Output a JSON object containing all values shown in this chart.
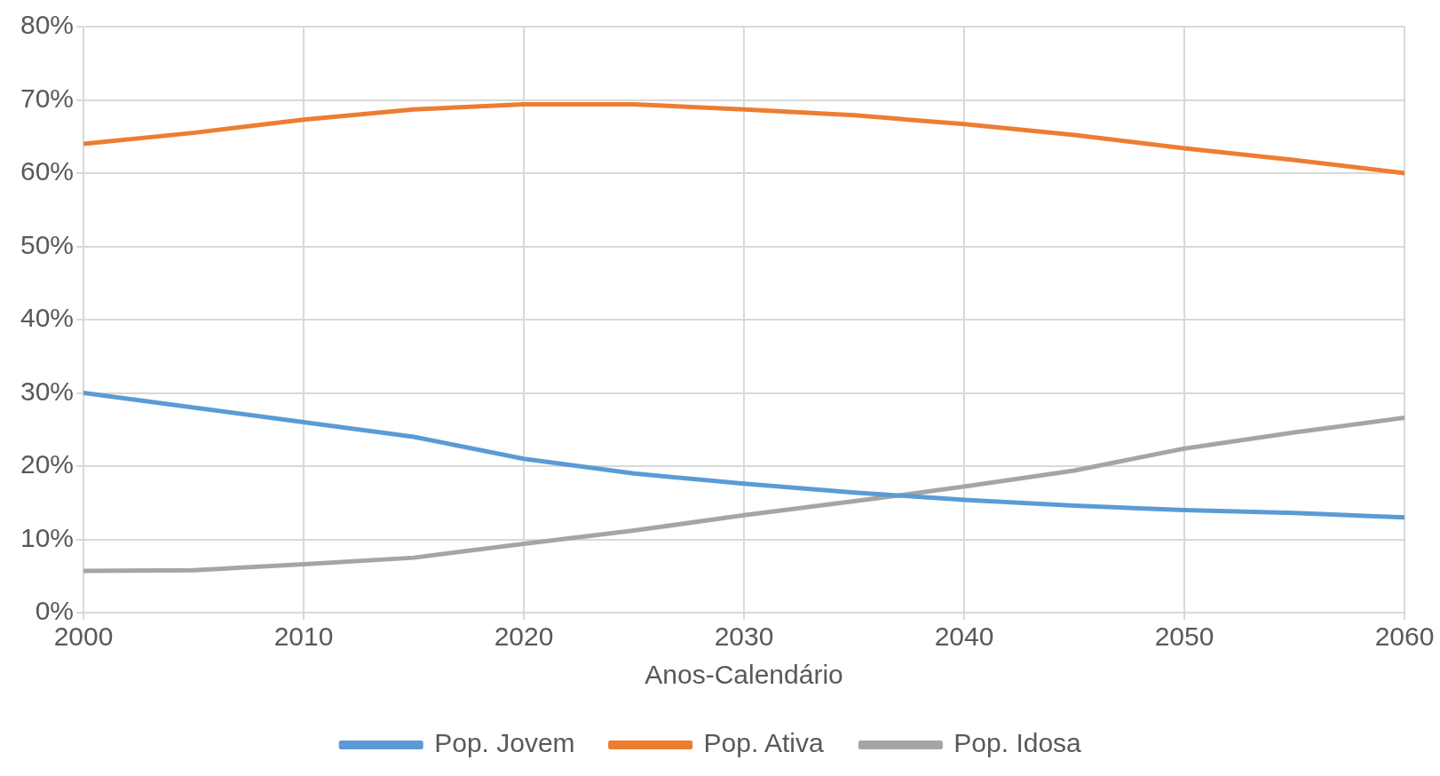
{
  "chart_data": {
    "type": "line",
    "xlabel": "Anos-Calendário",
    "x": [
      2000,
      2005,
      2010,
      2015,
      2020,
      2025,
      2030,
      2035,
      2040,
      2045,
      2050,
      2055,
      2060
    ],
    "series": [
      {
        "name": "Pop. Jovem",
        "color": "#5b9bd5",
        "values": [
          30,
          28,
          26,
          24,
          21,
          19,
          17.6,
          16.4,
          15.4,
          14.6,
          14,
          13.6,
          13
        ]
      },
      {
        "name": "Pop. Ativa",
        "color": "#ed7d31",
        "values": [
          64,
          65.5,
          67.3,
          68.7,
          69.4,
          69.4,
          68.7,
          67.9,
          66.7,
          65.2,
          63.4,
          61.8,
          60
        ]
      },
      {
        "name": "Pop. Idosa",
        "color": "#a5a5a5",
        "values": [
          5.7,
          5.8,
          6.6,
          7.5,
          9.4,
          11.2,
          13.3,
          15.2,
          17.2,
          19.4,
          22.4,
          24.6,
          26.6
        ]
      }
    ],
    "xlim": [
      2000,
      2060
    ],
    "xticks": [
      2000,
      2010,
      2020,
      2030,
      2040,
      2050,
      2060
    ],
    "ylim": [
      0,
      80
    ],
    "yticks": [
      {
        "value": 0,
        "label": "0%"
      },
      {
        "value": 10,
        "label": "10%"
      },
      {
        "value": 20,
        "label": "20%"
      },
      {
        "value": 30,
        "label": "30%"
      },
      {
        "value": 40,
        "label": "40%"
      },
      {
        "value": 50,
        "label": "50%"
      },
      {
        "value": 60,
        "label": "60%"
      },
      {
        "value": 70,
        "label": "70%"
      },
      {
        "value": 80,
        "label": "80%"
      }
    ],
    "grid": true,
    "legend": "bottom",
    "marker": "none",
    "line_style": "solid"
  }
}
